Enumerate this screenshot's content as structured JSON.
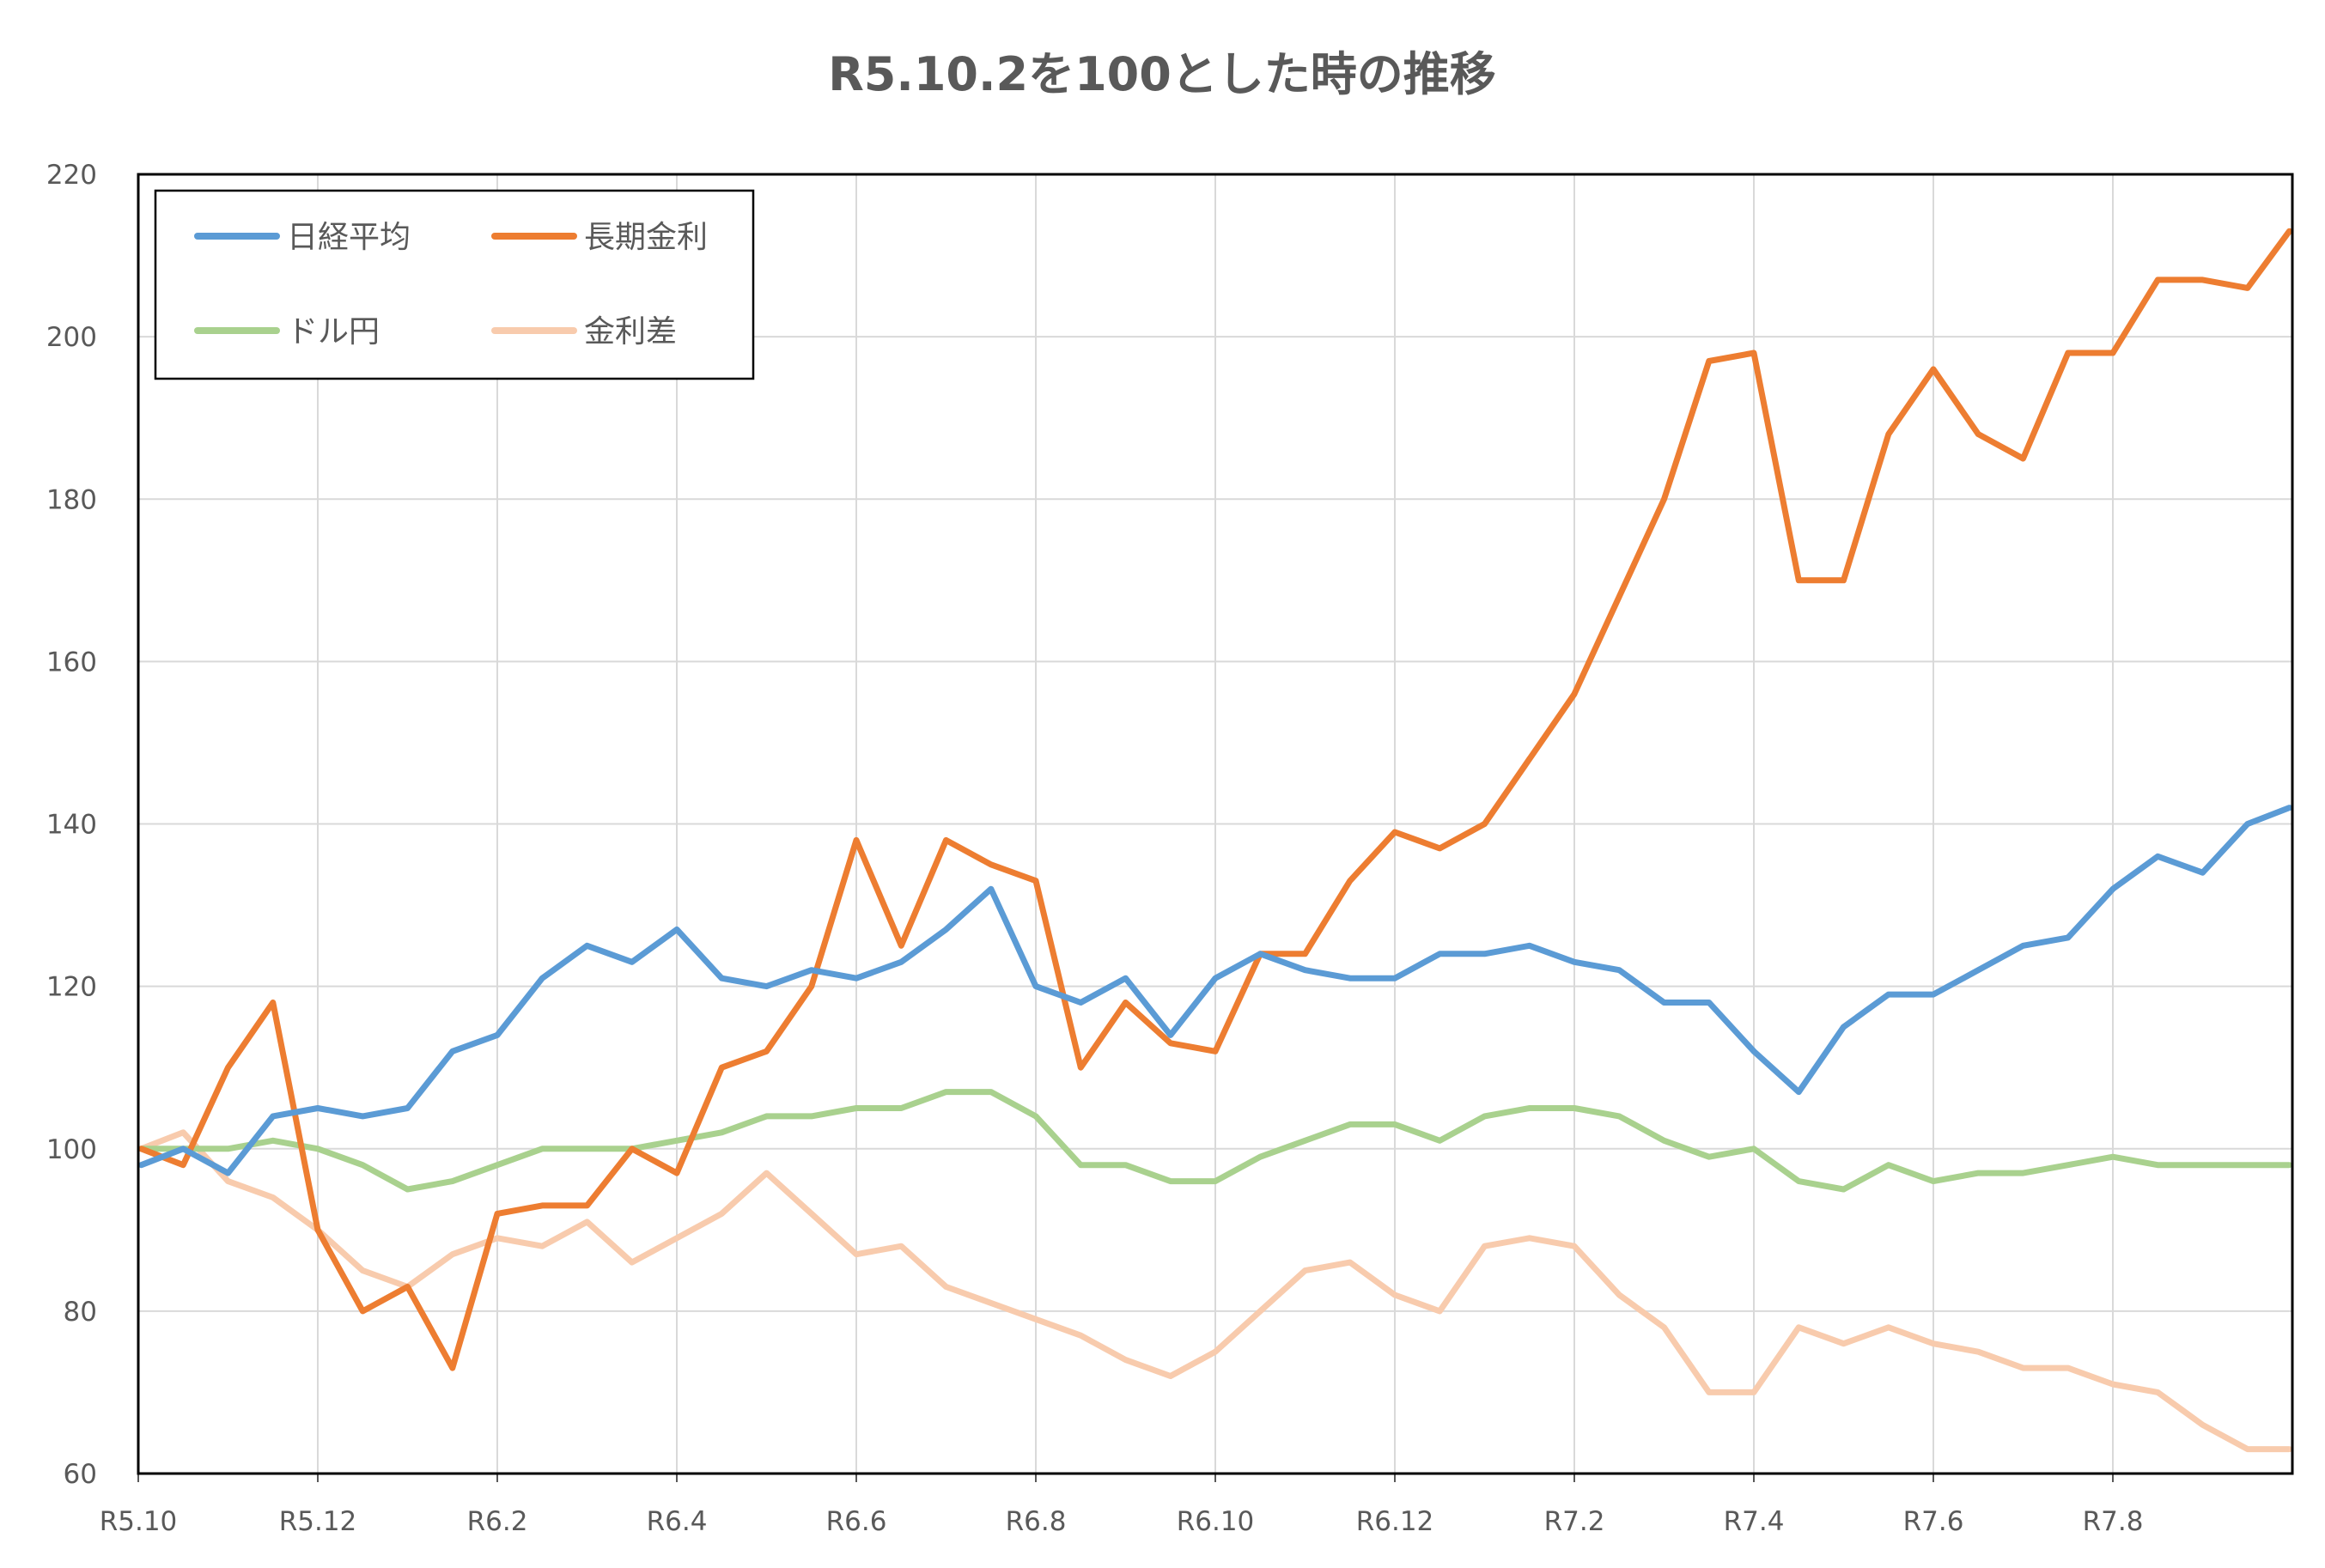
{
  "chart_data": {
    "type": "line",
    "title": "R5.10.2を100とした時の推移",
    "xlabel": "",
    "ylabel": "",
    "ylim": [
      60,
      220
    ],
    "yticks": [
      "60",
      "80",
      "100",
      "120",
      "140",
      "160",
      "180",
      "200",
      "220"
    ],
    "xticks": [
      "R5.10",
      "R5.12",
      "R6.2",
      "R6.4",
      "R6.6",
      "R6.8",
      "R6.10",
      "R6.12",
      "R7.2",
      "R7.4",
      "R7.6",
      "R7.8"
    ],
    "xlim": [
      "2023-10-01",
      "2025-10-01"
    ],
    "grid": true,
    "legend": "top-left",
    "x": [
      "2023-10-02",
      "2023-10-16",
      "2023-11-01",
      "2023-11-16",
      "2023-12-01",
      "2023-12-16",
      "2024-01-01",
      "2024-01-16",
      "2024-02-01",
      "2024-02-16",
      "2024-03-01",
      "2024-03-16",
      "2024-04-01",
      "2024-04-16",
      "2024-05-01",
      "2024-05-16",
      "2024-06-01",
      "2024-06-16",
      "2024-07-01",
      "2024-07-16",
      "2024-08-01",
      "2024-08-16",
      "2024-09-01",
      "2024-09-16",
      "2024-10-01",
      "2024-10-16",
      "2024-11-01",
      "2024-11-16",
      "2024-12-01",
      "2024-12-16",
      "2025-01-01",
      "2025-01-16",
      "2025-02-01",
      "2025-02-16",
      "2025-03-01",
      "2025-03-16",
      "2025-04-01",
      "2025-04-16",
      "2025-05-01",
      "2025-05-16",
      "2025-06-01",
      "2025-06-16",
      "2025-07-01",
      "2025-07-16",
      "2025-08-01",
      "2025-08-16",
      "2025-09-01",
      "2025-09-16",
      "2025-09-30"
    ],
    "series": [
      {
        "name": "日経平均",
        "color": "#5B9BD5",
        "values": [
          98,
          100,
          97,
          104,
          105,
          104,
          105,
          112,
          114,
          121,
          125,
          123,
          127,
          121,
          120,
          122,
          121,
          123,
          127,
          132,
          120,
          118,
          121,
          114,
          121,
          124,
          122,
          121,
          121,
          124,
          124,
          125,
          123,
          122,
          118,
          118,
          112,
          107,
          115,
          119,
          119,
          122,
          125,
          126,
          132,
          136,
          134,
          140,
          142
        ]
      },
      {
        "name": "長期金利",
        "color": "#ED7D31",
        "values": [
          100,
          98,
          110,
          118,
          90,
          80,
          83,
          73,
          92,
          93,
          93,
          100,
          97,
          110,
          112,
          120,
          138,
          125,
          138,
          135,
          133,
          110,
          118,
          113,
          112,
          124,
          124,
          133,
          139,
          137,
          140,
          148,
          156,
          168,
          180,
          197,
          198,
          170,
          170,
          188,
          196,
          188,
          185,
          198,
          198,
          207,
          207,
          206,
          213
        ]
      },
      {
        "name": "ドル円",
        "color": "#A9D18E",
        "values": [
          100,
          100,
          100,
          101,
          100,
          98,
          95,
          96,
          98,
          100,
          100,
          100,
          101,
          102,
          104,
          104,
          105,
          105,
          107,
          107,
          104,
          98,
          98,
          96,
          96,
          99,
          101,
          103,
          103,
          101,
          104,
          105,
          105,
          104,
          101,
          99,
          100,
          96,
          95,
          98,
          96,
          97,
          97,
          98,
          99,
          98,
          98,
          98,
          98
        ]
      },
      {
        "name": "金利差",
        "color": "#F8CBAD",
        "values": [
          100,
          102,
          96,
          94,
          90,
          85,
          83,
          87,
          89,
          88,
          91,
          86,
          89,
          92,
          97,
          92,
          87,
          88,
          83,
          81,
          79,
          77,
          74,
          72,
          75,
          80,
          85,
          86,
          82,
          80,
          88,
          89,
          88,
          82,
          78,
          70,
          70,
          78,
          76,
          78,
          76,
          75,
          73,
          73,
          71,
          70,
          66,
          63,
          63
        ]
      }
    ]
  }
}
